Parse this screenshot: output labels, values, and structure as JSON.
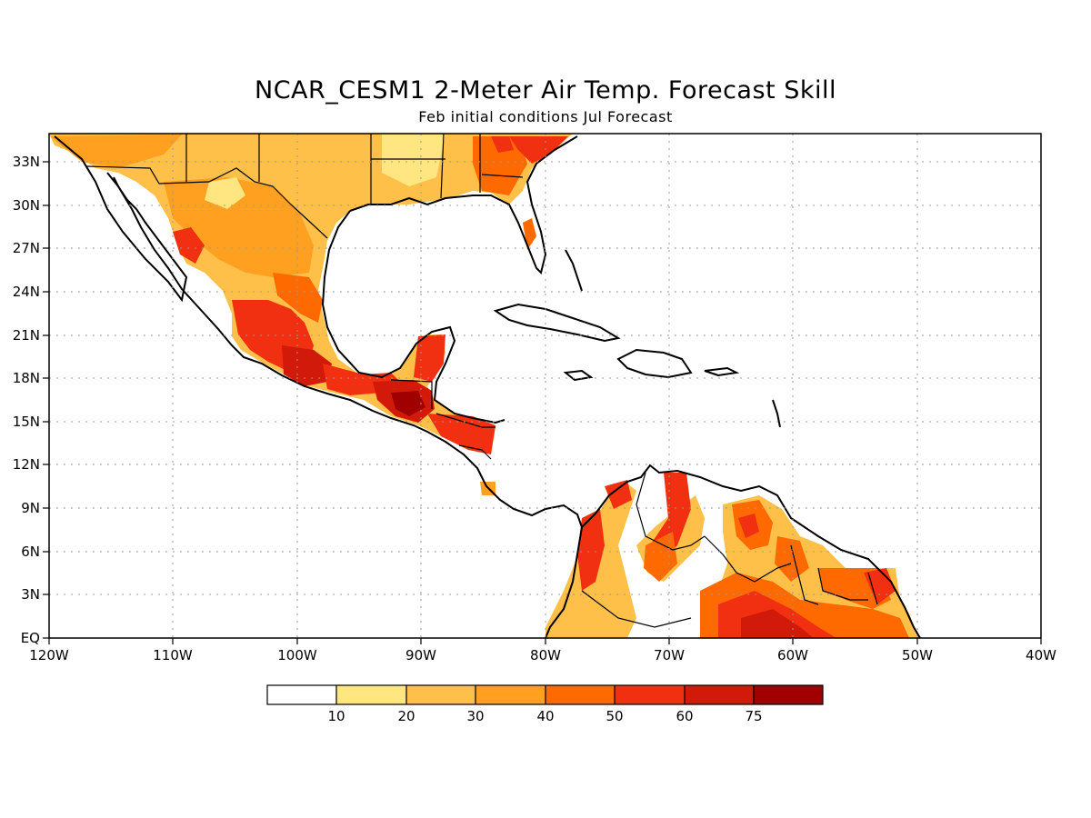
{
  "title": "NCAR_CESM1 2-Meter Air Temp. Forecast Skill",
  "subtitle": "Feb initial conditions  Jul Forecast",
  "map": {
    "lon_range": [
      -120,
      -40
    ],
    "lat_range": [
      0,
      35
    ],
    "lat_labels": [
      "EQ",
      "3N",
      "6N",
      "9N",
      "12N",
      "15N",
      "18N",
      "21N",
      "24N",
      "27N",
      "30N",
      "33N"
    ],
    "lon_labels": [
      "120W",
      "110W",
      "100W",
      "90W",
      "80W",
      "70W",
      "60W",
      "50W",
      "40W"
    ],
    "grid": "dotted"
  },
  "colorbar": {
    "levels": [
      "10",
      "20",
      "30",
      "40",
      "50",
      "60",
      "75"
    ],
    "colors": [
      "#ffffff",
      "#ffe680",
      "#ffc04a",
      "#ffa020",
      "#ff6a00",
      "#f03010",
      "#d21a0a",
      "#a00000"
    ]
  }
}
